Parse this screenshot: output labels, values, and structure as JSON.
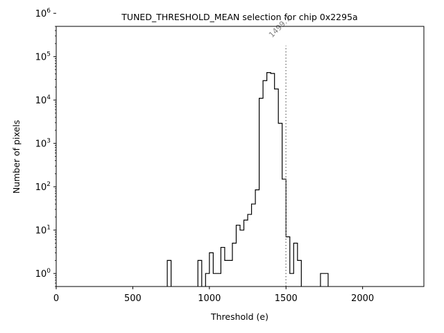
{
  "chart_data": {
    "type": "histogram",
    "title": "TUNED_THRESHOLD_MEAN selection for chip 0x2295a",
    "xlabel": "Threshold (e)",
    "ylabel": "Number of pixels",
    "xscale": "linear",
    "yscale": "log",
    "xlim": [
      0,
      2400
    ],
    "ylim": [
      0.5,
      500000
    ],
    "xticks": [
      {
        "value": 0,
        "label": "0"
      },
      {
        "value": 500,
        "label": "500"
      },
      {
        "value": 1000,
        "label": "1000"
      },
      {
        "value": 1500,
        "label": "1500"
      },
      {
        "value": 2000,
        "label": "2000"
      }
    ],
    "yticks": [
      {
        "value": 1,
        "base": "10",
        "exp": "0"
      },
      {
        "value": 10,
        "base": "10",
        "exp": "1"
      },
      {
        "value": 100,
        "base": "10",
        "exp": "2"
      },
      {
        "value": 1000,
        "base": "10",
        "exp": "3"
      },
      {
        "value": 10000,
        "base": "10",
        "exp": "4"
      },
      {
        "value": 100000,
        "base": "10",
        "exp": "5"
      },
      {
        "value": 1000000,
        "base": "10",
        "exp": "6"
      }
    ],
    "bin_width": 25,
    "bins": [
      {
        "x0": 725,
        "count": 2
      },
      {
        "x0": 925,
        "count": 2
      },
      {
        "x0": 975,
        "count": 1
      },
      {
        "x0": 1000,
        "count": 3
      },
      {
        "x0": 1025,
        "count": 1
      },
      {
        "x0": 1050,
        "count": 1
      },
      {
        "x0": 1075,
        "count": 4
      },
      {
        "x0": 1100,
        "count": 2
      },
      {
        "x0": 1125,
        "count": 2
      },
      {
        "x0": 1150,
        "count": 5
      },
      {
        "x0": 1175,
        "count": 13
      },
      {
        "x0": 1200,
        "count": 10
      },
      {
        "x0": 1225,
        "count": 17
      },
      {
        "x0": 1250,
        "count": 23
      },
      {
        "x0": 1275,
        "count": 40
      },
      {
        "x0": 1300,
        "count": 85
      },
      {
        "x0": 1325,
        "count": 11000
      },
      {
        "x0": 1350,
        "count": 28000
      },
      {
        "x0": 1375,
        "count": 43000
      },
      {
        "x0": 1400,
        "count": 41000
      },
      {
        "x0": 1425,
        "count": 18000
      },
      {
        "x0": 1450,
        "count": 2900
      },
      {
        "x0": 1475,
        "count": 150
      },
      {
        "x0": 1500,
        "count": 7
      },
      {
        "x0": 1525,
        "count": 1
      },
      {
        "x0": 1550,
        "count": 5
      },
      {
        "x0": 1575,
        "count": 2
      },
      {
        "x0": 1725,
        "count": 1
      },
      {
        "x0": 1750,
        "count": 1
      }
    ],
    "line_color": "#000000",
    "mean_line": {
      "value": 1499.7,
      "label": "1499.7",
      "color": "#808080",
      "style": "dotted",
      "ymax": 180000
    }
  }
}
